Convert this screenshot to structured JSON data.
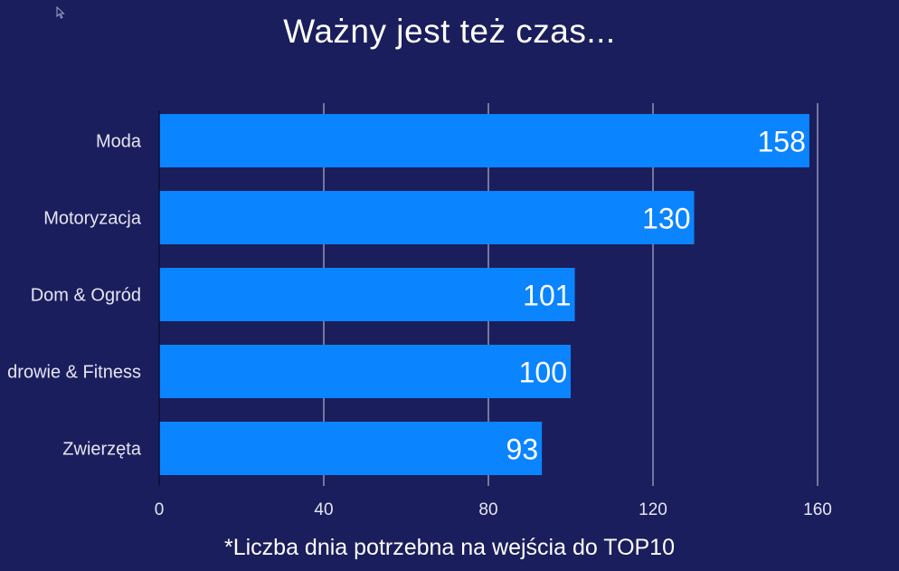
{
  "slide": {
    "title": "Ważny jest też czas...",
    "footnote": "*Liczba dnia potrzebna na wejścia do TOP10"
  },
  "colors": {
    "background": "#1b1e5c",
    "bar": "#0a84ff",
    "gridline": "#c9cbe0",
    "text": "#ffffff",
    "category_text": "#e4e6f2"
  },
  "chart_data": {
    "type": "bar",
    "orientation": "horizontal",
    "categories": [
      "Moda",
      "Motoryzacja",
      "Dom & Ogród",
      "drowie & Fitness",
      "Zwierzęta"
    ],
    "values": [
      158,
      130,
      101,
      100,
      93
    ],
    "data_labels": [
      "158",
      "130",
      "101",
      "100",
      "93"
    ],
    "xlim": [
      0,
      160
    ],
    "xticks": [
      0,
      40,
      80,
      120,
      160
    ],
    "xtick_labels": [
      "0",
      "40",
      "80",
      "120",
      "160"
    ],
    "grid": true,
    "title": "",
    "xlabel": "",
    "ylabel": ""
  }
}
